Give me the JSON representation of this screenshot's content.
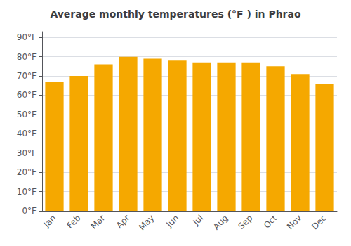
{
  "chart_data": {
    "type": "bar",
    "title": "Average monthly temperatures (°F ) in Phrao",
    "categories": [
      "Jan",
      "Feb",
      "Mar",
      "Apr",
      "May",
      "Jun",
      "Jul",
      "Aug",
      "Sep",
      "Oct",
      "Nov",
      "Dec"
    ],
    "values": [
      67,
      70,
      76,
      80,
      79,
      78,
      77,
      77,
      77,
      75,
      71,
      66
    ],
    "color": "#F5A800",
    "ylim": [
      0,
      93
    ],
    "yticks": [
      {
        "value": 0,
        "label": "0°F"
      },
      {
        "value": 10,
        "label": "10°F"
      },
      {
        "value": 20,
        "label": "20°F"
      },
      {
        "value": 30,
        "label": "30°F"
      },
      {
        "value": 40,
        "label": "40°F"
      },
      {
        "value": 50,
        "label": "50°F"
      },
      {
        "value": 60,
        "label": "60°F"
      },
      {
        "value": 70,
        "label": "70°F"
      },
      {
        "value": 80,
        "label": "80°F"
      },
      {
        "value": 90,
        "label": "90°F"
      }
    ],
    "grid": true
  }
}
